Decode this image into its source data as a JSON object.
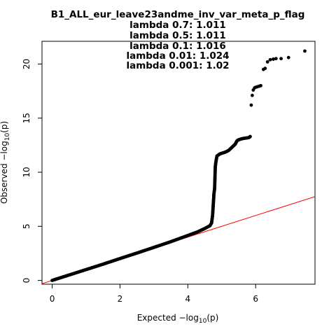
{
  "chart_data": {
    "type": "scatter",
    "title": "B1_ALL_eur_leave23andme_inv_var_meta_p_flag",
    "subtitle_lines": [
      "lambda 0.7: 1.011",
      "lambda 0.5: 1.011",
      "lambda 0.1: 1.016",
      "lambda 0.01: 1.024",
      "lambda 0.001: 1.02"
    ],
    "xlabel": {
      "prefix": "Expected  −log",
      "sub": "10",
      "suffix": "(p)"
    },
    "ylabel": {
      "prefix": "Observed  −log",
      "sub": "10",
      "suffix": "(p)"
    },
    "xlim": [
      -0.3,
      7.75
    ],
    "ylim": [
      -0.35,
      22.1
    ],
    "xticks": [
      0,
      2,
      4,
      6
    ],
    "yticks": [
      0,
      5,
      10,
      15,
      20
    ],
    "grid": false,
    "point_color": "#000000",
    "reference_line": {
      "slope": 1,
      "intercept": 0,
      "color": "#ff0000"
    },
    "series_curve": [
      [
        0,
        0
      ],
      [
        0.5,
        0.5
      ],
      [
        1,
        1
      ],
      [
        1.5,
        1.5
      ],
      [
        2,
        2.02
      ],
      [
        2.5,
        2.53
      ],
      [
        3,
        3.05
      ],
      [
        3.5,
        3.58
      ],
      [
        4,
        4.15
      ],
      [
        4.3,
        4.5
      ],
      [
        4.5,
        4.8
      ],
      [
        4.65,
        5.05
      ],
      [
        4.7,
        5.3
      ],
      [
        4.73,
        6.0
      ],
      [
        4.75,
        7.0
      ],
      [
        4.77,
        8.0
      ],
      [
        4.79,
        8.5
      ],
      [
        4.8,
        9.5
      ],
      [
        4.81,
        10.5
      ],
      [
        4.83,
        11.0
      ],
      [
        4.86,
        11.5
      ],
      [
        4.95,
        11.7
      ],
      [
        5.1,
        11.85
      ],
      [
        5.2,
        12.0
      ],
      [
        5.3,
        12.3
      ],
      [
        5.4,
        12.6
      ],
      [
        5.45,
        12.9
      ],
      [
        5.5,
        13.0
      ],
      [
        5.6,
        13.1
      ],
      [
        5.7,
        13.15
      ],
      [
        5.8,
        13.2
      ],
      [
        5.84,
        13.3
      ]
    ],
    "series_points": [
      [
        5.87,
        16.2
      ],
      [
        5.9,
        17.1
      ],
      [
        5.93,
        17.6
      ],
      [
        5.97,
        17.8
      ],
      [
        6.0,
        17.85
      ],
      [
        6.05,
        17.9
      ],
      [
        6.1,
        17.95
      ],
      [
        6.15,
        18.0
      ],
      [
        6.23,
        19.5
      ],
      [
        6.28,
        19.6
      ],
      [
        6.35,
        20.2
      ],
      [
        6.43,
        20.4
      ],
      [
        6.52,
        20.45
      ],
      [
        6.6,
        20.5
      ],
      [
        6.75,
        20.5
      ],
      [
        6.97,
        20.6
      ],
      [
        7.45,
        21.2
      ]
    ]
  }
}
